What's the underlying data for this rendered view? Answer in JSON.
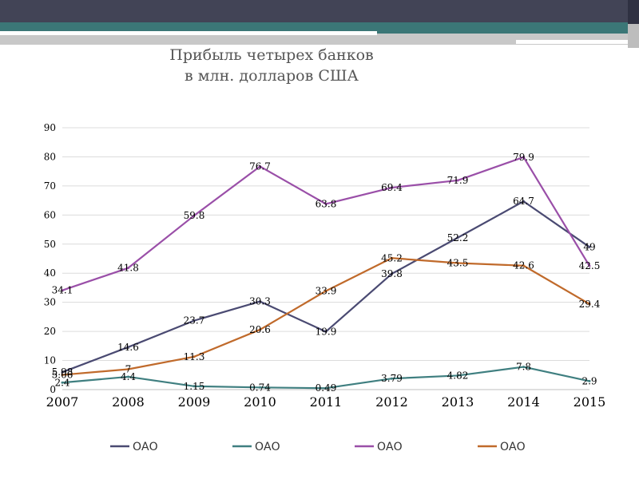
{
  "slide": {
    "title_line1": "Прибыль четырех банков",
    "title_line2": "в млн. долларов США"
  },
  "chart_data": {
    "type": "line",
    "categories": [
      "2007",
      "2008",
      "2009",
      "2010",
      "2011",
      "2012",
      "2013",
      "2014",
      "2015"
    ],
    "ylim": [
      0,
      90
    ],
    "yticks": [
      0,
      10,
      20,
      30,
      40,
      50,
      60,
      70,
      80,
      90
    ],
    "grid": true,
    "legend_position": "bottom",
    "series": [
      {
        "name": "ОАО",
        "color": "#4a4a72",
        "values": [
          5.98,
          14.6,
          23.7,
          30.3,
          19.9,
          39.8,
          52.2,
          64.7,
          49
        ],
        "labels": [
          "5.98",
          "14.6",
          "23.7",
          "30.3",
          "19.9",
          "39.8",
          "52.2",
          "64.7",
          "49"
        ]
      },
      {
        "name": "ОАО",
        "color": "#3f7f80",
        "values": [
          2.4,
          4.4,
          1.15,
          0.74,
          0.49,
          3.79,
          4.82,
          7.8,
          2.9
        ],
        "labels": [
          "2.4",
          "4.4",
          "1.15",
          "0.74",
          "0.49",
          "3.79",
          "4.82",
          "7.8",
          "2.9"
        ]
      },
      {
        "name": "ОАО",
        "color": "#9a4fa8",
        "values": [
          34.1,
          41.8,
          59.8,
          76.7,
          63.8,
          69.4,
          71.9,
          79.9,
          42.5
        ],
        "labels": [
          "34.1",
          "41.8",
          "59.8",
          "76.7",
          "63.8",
          "69.4",
          "71.9",
          "79.9",
          "42.5"
        ]
      },
      {
        "name": "ОАО",
        "color": "#c06a2b",
        "values": [
          5.06,
          7,
          11.3,
          20.6,
          33.9,
          45.2,
          43.5,
          42.6,
          29.4
        ],
        "labels": [
          "5.06",
          "7",
          "11.3",
          "20.6",
          "33.9",
          "45.2",
          "43.5",
          "42.6",
          "29.4"
        ]
      }
    ]
  }
}
